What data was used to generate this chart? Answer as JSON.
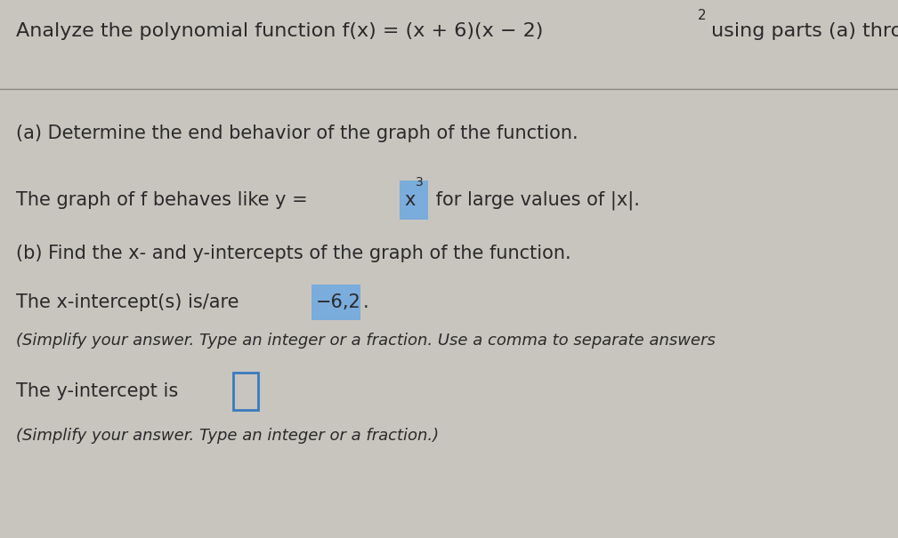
{
  "bg_color": "#c8c5be",
  "text_color": "#2a2a2a",
  "highlight_bg": "#7aacdc",
  "highlight_border_blue": "#3a7abf",
  "title_text": "Analyze the polynomial function f(x) = (x + 6)(x − 2)",
  "title_sup": "2",
  "title_suffix": " using parts (a) through (e).",
  "a_header": "(a) Determine the end behavior of the graph of the function.",
  "a_body_pre": "The graph of f behaves like y = ",
  "a_body_x": "x",
  "a_body_sup": "3",
  "a_body_post": " for large values of |x|.",
  "b_header": "(b) Find the x- and y-intercepts of the graph of the function.",
  "b_x_pre": "The x-intercept(s) is/are ",
  "b_x_val": "−6,2",
  "b_x_post": ".",
  "b_x_note": "(Simplify your answer. Type an integer or a fraction. Use a comma to separate answers",
  "b_y_pre": "The y-intercept is ",
  "b_y_note": "(Simplify your answer. Type an integer or a fraction.)",
  "fs_title": 16,
  "fs_body": 15,
  "fs_note": 13,
  "fs_sup": 11
}
